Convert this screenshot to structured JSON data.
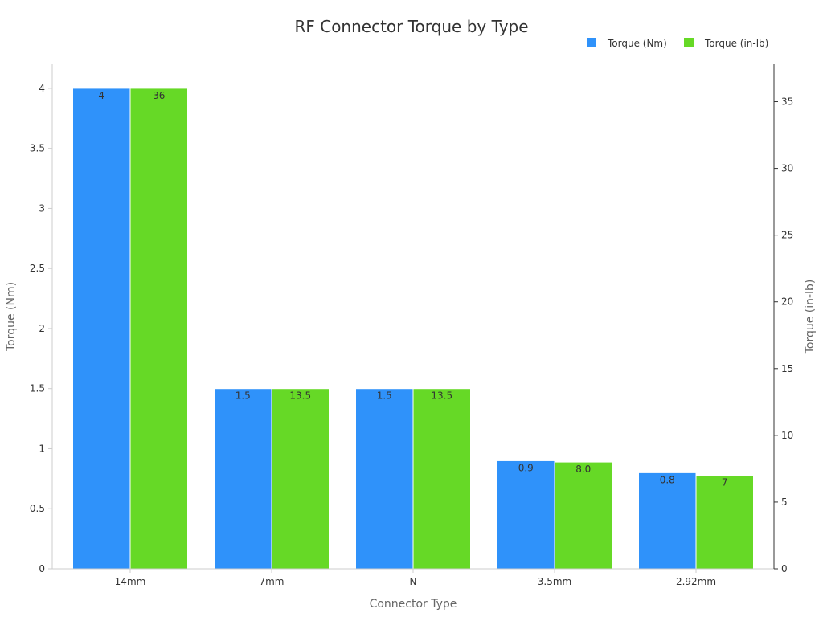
{
  "chart_data": {
    "type": "bar",
    "title": "RF Connector Torque by Type",
    "xlabel": "Connector Type",
    "ylabel": "Torque (Nm)",
    "y2label": "Torque (in-lb)",
    "categories": [
      "14mm",
      "7mm",
      "N",
      "3.5mm",
      "2.92mm"
    ],
    "series": [
      {
        "name": "Torque (Nm)",
        "axis": "left",
        "color": "#2f92fa",
        "values": [
          4,
          1.5,
          1.5,
          0.9,
          0.8
        ],
        "labels": [
          "4",
          "1.5",
          "1.5",
          "0.9",
          "0.8"
        ]
      },
      {
        "name": "Torque (in-lb)",
        "axis": "right",
        "color": "#66d926",
        "values": [
          36,
          13.5,
          13.5,
          8.0,
          7
        ],
        "labels": [
          "36",
          "13.5",
          "13.5",
          "8.0",
          "7"
        ]
      }
    ],
    "ylim": [
      0,
      4.2
    ],
    "y2lim": [
      0,
      37.8
    ],
    "yticks": [
      "0",
      "0.5",
      "1",
      "1.5",
      "2",
      "2.5",
      "3",
      "3.5",
      "4"
    ],
    "y2ticks": [
      "0",
      "5",
      "10",
      "15",
      "20",
      "25",
      "30",
      "35"
    ],
    "grid": false,
    "legend": "top-right"
  }
}
